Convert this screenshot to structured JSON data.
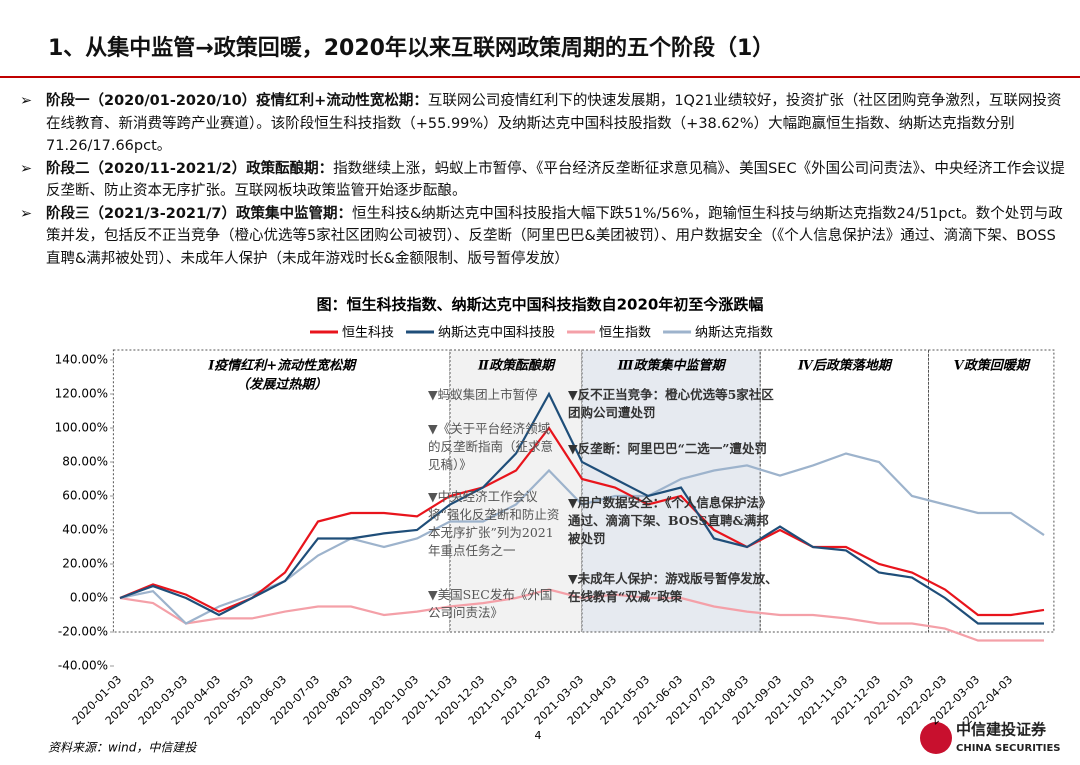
{
  "header": {
    "title": "1、从集中监管→政策回暖，2020年以来互联网政策周期的五个阶段（1）"
  },
  "bullets": [
    {
      "lead": "阶段一（2020/01-2020/10）疫情红利+流动性宽松期：",
      "text": "互联网公司疫情红利下的快速发展期，1Q21业绩较好，投资扩张（社区团购竞争激烈，互联网投资在线教育、新消费等跨产业赛道）。该阶段恒生科技指数（+55.99%）及纳斯达克中国科技股指数（+38.62%）大幅跑赢恒生指数、纳斯达克指数分别71.26/17.66pct。"
    },
    {
      "lead": "阶段二（2020/11-2021/2）政策酝酿期：",
      "text": "指数继续上涨，蚂蚁上市暂停、《平台经济反垄断征求意见稿》、美国SEC《外国公司问责法》、中央经济工作会议提反垄断、防止资本无序扩张。互联网板块政策监管开始逐步酝酿。"
    },
    {
      "lead": "阶段三（2021/3-2021/7）政策集中监管期：",
      "text": "恒生科技&纳斯达克中国科技股指大幅下跌51%/56%，跑输恒生科技与纳斯达克指数24/51pct。数个处罚与政策并发，包括反不正当竞争（橙心优选等5家社区团购公司被罚）、反垄断（阿里巴巴&美团被罚）、用户数据安全（《个人信息保护法》通过、滴滴下架、BOSS直聘&满邦被处罚）、未成年人保护（未成年游戏时长&金额限制、版号暂停发放）"
    }
  ],
  "chart_data": {
    "type": "line",
    "title": "图：恒生科技指数、纳斯达克中国科技指数自2020年初至今涨跌幅",
    "categories": [
      "2020-01-03",
      "2020-02-03",
      "2020-03-03",
      "2020-04-03",
      "2020-05-03",
      "2020-06-03",
      "2020-07-03",
      "2020-08-03",
      "2020-09-03",
      "2020-10-03",
      "2020-11-03",
      "2020-12-03",
      "2021-01-03",
      "2021-02-03",
      "2021-03-03",
      "2021-04-03",
      "2021-05-03",
      "2021-06-03",
      "2021-07-03",
      "2021-08-03",
      "2021-09-03",
      "2021-10-03",
      "2021-11-03",
      "2021-12-03",
      "2022-01-03",
      "2022-02-03",
      "2022-03-03",
      "2022-04-03",
      null
    ],
    "series": [
      {
        "name": "恒生科技",
        "color": "#e8141c",
        "values": [
          0,
          8,
          2,
          -8,
          0,
          15,
          45,
          50,
          50,
          48,
          60,
          65,
          75,
          100,
          70,
          65,
          55,
          60,
          40,
          30,
          40,
          30,
          30,
          20,
          15,
          5,
          -10,
          -10,
          -7
        ]
      },
      {
        "name": "纳斯达克中国科技股",
        "color": "#1f4e79",
        "values": [
          0,
          7,
          0,
          -10,
          0,
          10,
          35,
          35,
          38,
          40,
          55,
          65,
          85,
          120,
          80,
          70,
          60,
          65,
          35,
          30,
          42,
          30,
          28,
          15,
          12,
          0,
          -15,
          -15,
          -15
        ]
      },
      {
        "name": "恒生指数",
        "color": "#f4a0a8",
        "values": [
          0,
          -3,
          -15,
          -12,
          -12,
          -8,
          -5,
          -5,
          -10,
          -8,
          -5,
          -3,
          0,
          5,
          0,
          2,
          0,
          0,
          -5,
          -8,
          -10,
          -10,
          -12,
          -15,
          -15,
          -18,
          -25,
          -25,
          -25
        ]
      },
      {
        "name": "纳斯达克指数",
        "color": "#9db3cc",
        "values": [
          0,
          4,
          -15,
          -5,
          2,
          10,
          25,
          35,
          30,
          35,
          45,
          45,
          55,
          75,
          55,
          60,
          60,
          70,
          75,
          78,
          72,
          78,
          85,
          80,
          60,
          55,
          50,
          50,
          37
        ]
      }
    ],
    "ylim": [
      -40,
      140
    ],
    "yticks": [
      {
        "value": -40,
        "label": "-40.00%"
      },
      {
        "value": -20,
        "label": "-20.00%"
      },
      {
        "value": 0,
        "label": "0.00%"
      },
      {
        "value": 20,
        "label": "20.00%"
      },
      {
        "value": 40,
        "label": "40.00%"
      },
      {
        "value": 60,
        "label": "60.00%"
      },
      {
        "value": 80,
        "label": "80.00%"
      },
      {
        "value": 100,
        "label": "100.00%"
      },
      {
        "value": 120,
        "label": "120.00%"
      },
      {
        "value": 140,
        "label": "140.00%"
      }
    ],
    "phases": [
      {
        "label": "Ⅰ疫情红利+流动性宽松期",
        "sublabel": "（发展过热期）"
      },
      {
        "label": "Ⅱ政策酝酿期"
      },
      {
        "label": "Ⅲ政策集中监管期"
      },
      {
        "label": "Ⅳ后政策落地期"
      },
      {
        "label": "Ⅴ政策回暖期"
      }
    ],
    "annotations": [
      "▼蚂蚁集团上市暂停",
      "▼《关于平台经济领域的反垄断指南（征求意见稿）》",
      "▼中央经济工作会议将“强化反垄断和防止资本无序扩张”列为2021年重点任务之一",
      "▼美国SEC发布《外国公司问责法》",
      "▼反不正当竞争：橙心优选等5家社区团购公司遭处罚",
      "▼反垄断：阿里巴巴“二选一”遭处罚",
      "▼用户数据安全：《个人信息保护法》通过、滴滴下架、BOSS直聘&满邦被处罚",
      "▼未成年人保护：游戏版号暂停发放、在线教育“双减”政策"
    ]
  },
  "source": "资料来源：wind，中信建投",
  "page_number": "4",
  "logo": {
    "name": "中信建投证券",
    "english": "CHINA SECURITIES"
  }
}
